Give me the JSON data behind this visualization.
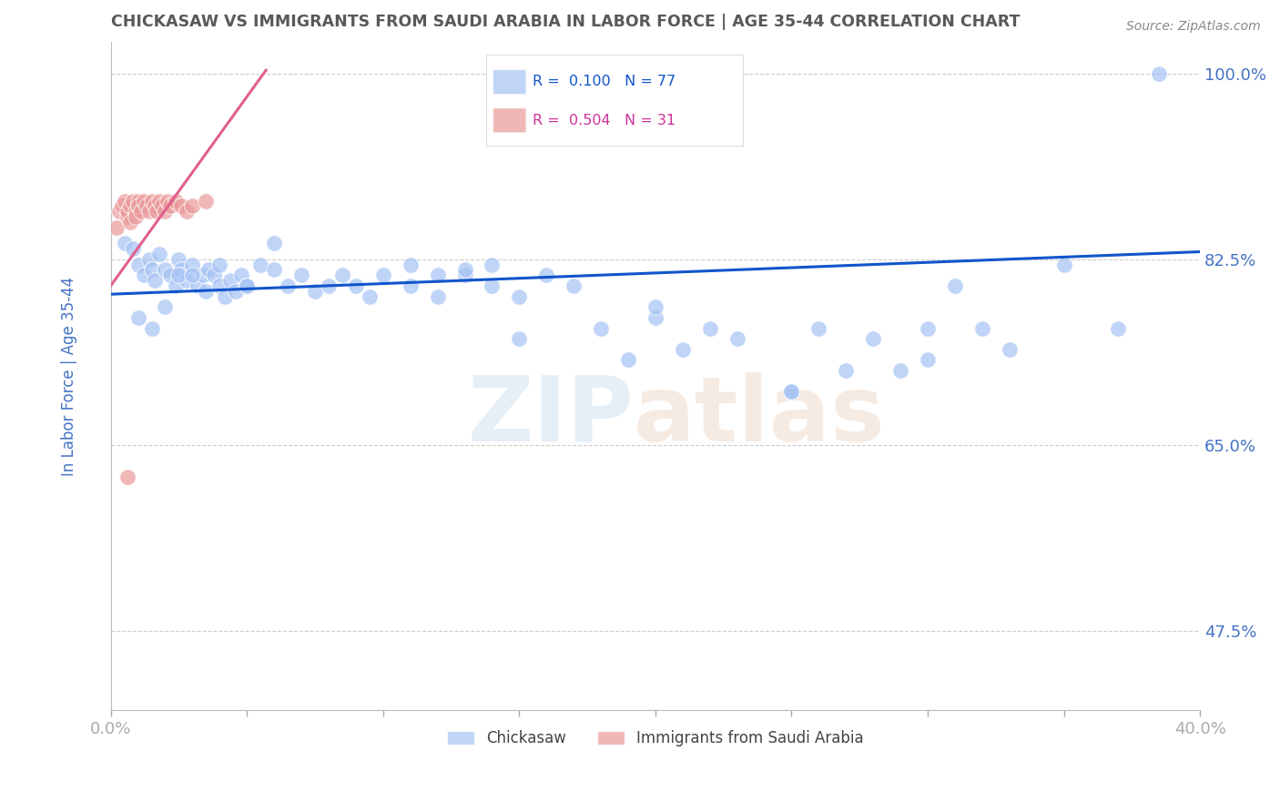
{
  "title": "CHICKASAW VS IMMIGRANTS FROM SAUDI ARABIA IN LABOR FORCE | AGE 35-44 CORRELATION CHART",
  "source_text": "Source: ZipAtlas.com",
  "ylabel": "In Labor Force | Age 35-44",
  "xlim": [
    0.0,
    0.4
  ],
  "ylim": [
    0.4,
    1.03
  ],
  "yticks": [
    0.475,
    0.65,
    0.825,
    1.0
  ],
  "ytick_labels": [
    "47.5%",
    "65.0%",
    "82.5%",
    "100.0%"
  ],
  "r_blue": 0.1,
  "n_blue": 77,
  "r_pink": 0.504,
  "n_pink": 31,
  "blue_color": "#a4c2f4",
  "pink_color": "#ea9999",
  "blue_line_color": "#1155cc",
  "pink_line_color": "#e06090",
  "title_color": "#595959",
  "axis_label_color": "#4472c4",
  "tick_color": "#4472c4",
  "grid_color": "#cccccc",
  "legend_label_blue": "Chickasaw",
  "legend_label_pink": "Immigrants from Saudi Arabia",
  "blue_scatter_x": [
    0.005,
    0.008,
    0.01,
    0.012,
    0.014,
    0.015,
    0.016,
    0.018,
    0.02,
    0.022,
    0.024,
    0.025,
    0.026,
    0.028,
    0.03,
    0.032,
    0.034,
    0.035,
    0.036,
    0.038,
    0.04,
    0.042,
    0.044,
    0.046,
    0.048,
    0.05,
    0.055,
    0.06,
    0.065,
    0.07,
    0.075,
    0.08,
    0.085,
    0.09,
    0.095,
    0.1,
    0.11,
    0.12,
    0.13,
    0.14,
    0.15,
    0.16,
    0.17,
    0.18,
    0.19,
    0.2,
    0.21,
    0.22,
    0.23,
    0.25,
    0.26,
    0.27,
    0.28,
    0.29,
    0.3,
    0.31,
    0.32,
    0.33,
    0.11,
    0.12,
    0.13,
    0.14,
    0.15,
    0.2,
    0.25,
    0.3,
    0.35,
    0.37,
    0.385,
    0.01,
    0.015,
    0.02,
    0.025,
    0.03,
    0.04,
    0.05,
    0.06
  ],
  "blue_scatter_y": [
    0.84,
    0.835,
    0.82,
    0.81,
    0.825,
    0.815,
    0.805,
    0.83,
    0.815,
    0.81,
    0.8,
    0.825,
    0.815,
    0.805,
    0.82,
    0.8,
    0.81,
    0.795,
    0.815,
    0.81,
    0.8,
    0.79,
    0.805,
    0.795,
    0.81,
    0.8,
    0.82,
    0.815,
    0.8,
    0.81,
    0.795,
    0.8,
    0.81,
    0.8,
    0.79,
    0.81,
    0.8,
    0.79,
    0.81,
    0.8,
    0.79,
    0.81,
    0.8,
    0.76,
    0.73,
    0.77,
    0.74,
    0.76,
    0.75,
    0.7,
    0.76,
    0.72,
    0.75,
    0.72,
    0.76,
    0.8,
    0.76,
    0.74,
    0.82,
    0.81,
    0.815,
    0.82,
    0.75,
    0.78,
    0.7,
    0.73,
    0.82,
    0.76,
    1.0,
    0.77,
    0.76,
    0.78,
    0.81,
    0.81,
    0.82,
    0.8,
    0.84
  ],
  "pink_scatter_x": [
    0.002,
    0.003,
    0.004,
    0.005,
    0.006,
    0.006,
    0.007,
    0.007,
    0.008,
    0.009,
    0.009,
    0.01,
    0.01,
    0.011,
    0.012,
    0.013,
    0.014,
    0.015,
    0.016,
    0.017,
    0.018,
    0.019,
    0.02,
    0.021,
    0.022,
    0.024,
    0.026,
    0.028,
    0.03,
    0.035,
    0.006
  ],
  "pink_scatter_y": [
    0.855,
    0.87,
    0.875,
    0.88,
    0.865,
    0.87,
    0.875,
    0.86,
    0.88,
    0.87,
    0.865,
    0.88,
    0.875,
    0.87,
    0.88,
    0.875,
    0.87,
    0.88,
    0.875,
    0.87,
    0.88,
    0.875,
    0.87,
    0.88,
    0.875,
    0.88,
    0.875,
    0.87,
    0.875,
    0.88,
    0.62
  ],
  "blue_line_x": [
    0.0,
    0.4
  ],
  "blue_line_y": [
    0.792,
    0.832
  ],
  "pink_line_x": [
    0.0,
    0.057
  ],
  "pink_line_y": [
    0.8,
    1.003
  ]
}
